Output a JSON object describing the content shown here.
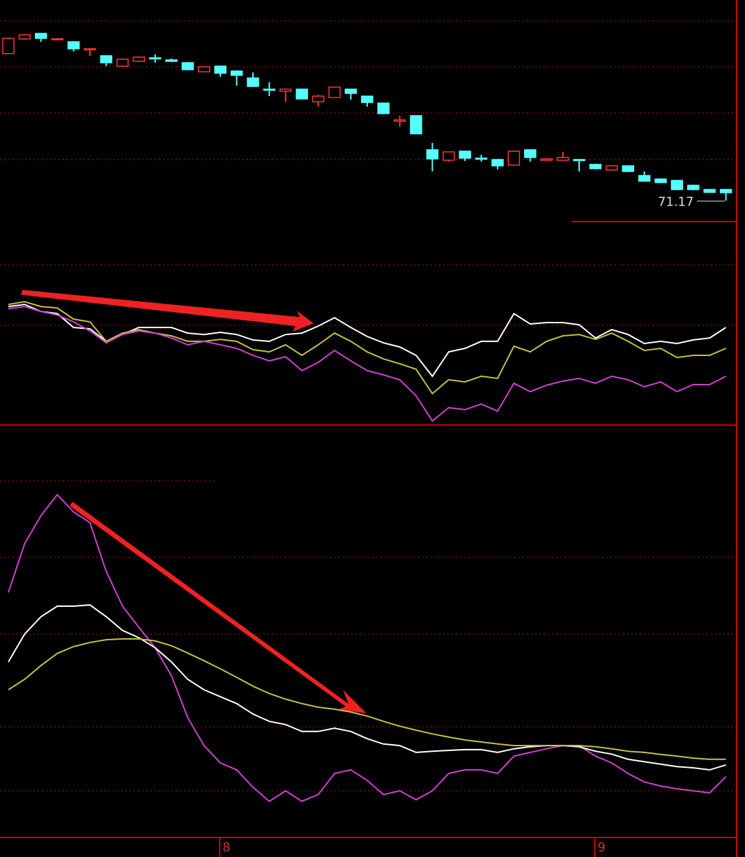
{
  "chart_data": [
    {
      "type": "candlestick",
      "up_color": "#ff3333",
      "down_color": "#54ffff",
      "ylim": [
        69,
        85
      ],
      "last_price": 71.17,
      "open": [
        81.15,
        82.2,
        82.6,
        82.2,
        82.0,
        81.45,
        81.0,
        80.25,
        80.6,
        80.85,
        80.7,
        80.5,
        79.85,
        80.25,
        79.9,
        79.4,
        78.6,
        78.45,
        78.6,
        77.7,
        78.0,
        78.6,
        78.1,
        77.6,
        76.3,
        76.7,
        74.25,
        73.5,
        74.15,
        73.65,
        73.55,
        73.15,
        74.25,
        73.5,
        73.5,
        73.55,
        73.2,
        72.8,
        73.1,
        72.4,
        72.15,
        72.05,
        71.7,
        71.4,
        71.4
      ],
      "high": [
        82.3,
        82.55,
        82.6,
        82.25,
        82.05,
        81.5,
        81.0,
        80.8,
        80.95,
        81.1,
        80.8,
        80.55,
        80.2,
        80.3,
        79.95,
        79.8,
        79.1,
        78.6,
        78.6,
        78.2,
        78.75,
        78.6,
        78.1,
        77.65,
        76.7,
        76.7,
        74.75,
        74.1,
        74.15,
        73.9,
        73.6,
        74.2,
        74.3,
        73.6,
        74.1,
        73.6,
        73.25,
        73.1,
        73.1,
        72.7,
        72.2,
        72.1,
        71.75,
        71.45,
        71.45
      ],
      "low": [
        81.1,
        82.15,
        82.0,
        82.15,
        81.3,
        81.0,
        80.25,
        80.2,
        80.55,
        80.5,
        80.55,
        79.95,
        79.85,
        79.5,
        78.85,
        78.8,
        78.1,
        77.7,
        77.9,
        77.35,
        78.0,
        77.85,
        77.35,
        76.8,
        75.9,
        75.4,
        72.7,
        73.4,
        73.45,
        73.4,
        72.85,
        73.1,
        73.4,
        73.45,
        73.5,
        72.7,
        72.85,
        72.8,
        72.7,
        72.0,
        71.85,
        71.35,
        71.35,
        71.15,
        70.6
      ],
      "close": [
        82.25,
        82.5,
        82.25,
        82.22,
        81.5,
        81.5,
        80.5,
        80.75,
        80.9,
        80.82,
        80.6,
        80.0,
        80.2,
        79.75,
        79.6,
        78.8,
        78.58,
        78.6,
        77.9,
        78.1,
        78.75,
        78.3,
        77.65,
        76.85,
        76.4,
        75.4,
        73.6,
        74.1,
        73.65,
        73.62,
        73.1,
        74.15,
        73.7,
        73.6,
        73.7,
        73.5,
        72.9,
        73.1,
        72.7,
        72.0,
        71.9,
        71.4,
        71.4,
        71.2,
        71.17
      ]
    },
    {
      "type": "line",
      "ylim": [
        0,
        100
      ],
      "series": [
        {
          "color": "#ffffff",
          "values": [
            60.7,
            61.8,
            58.2,
            57.1,
            50.0,
            49.3,
            42.9,
            46.4,
            50.0,
            50.0,
            50.0,
            47.1,
            46.4,
            47.5,
            46.4,
            43.6,
            42.9,
            46.4,
            47.1,
            50.7,
            55.0,
            50.0,
            45.4,
            42.1,
            40.0,
            35.7,
            25.0,
            37.5,
            39.3,
            42.9,
            42.9,
            57.1,
            51.8,
            52.5,
            52.5,
            51.4,
            44.6,
            48.9,
            46.4,
            41.8,
            42.9,
            41.8,
            43.6,
            44.6,
            50.0
          ]
        },
        {
          "color": "#c8c040",
          "values": [
            61.8,
            63.2,
            60.7,
            60.0,
            54.3,
            52.9,
            42.9,
            47.1,
            48.9,
            47.1,
            45.7,
            42.9,
            42.9,
            43.9,
            42.9,
            38.6,
            37.5,
            41.1,
            35.7,
            41.1,
            47.1,
            42.9,
            37.5,
            33.9,
            31.4,
            28.6,
            16.1,
            23.2,
            22.1,
            25.0,
            23.9,
            40.4,
            37.5,
            42.9,
            45.7,
            46.4,
            43.9,
            47.1,
            42.9,
            38.2,
            39.3,
            34.6,
            35.7,
            35.7,
            39.3
          ]
        },
        {
          "color": "#d040d0",
          "values": [
            59.6,
            60.7,
            58.2,
            56.4,
            52.9,
            48.2,
            42.1,
            46.4,
            48.2,
            47.1,
            44.6,
            41.1,
            42.9,
            41.1,
            39.3,
            35.7,
            32.9,
            35.0,
            27.9,
            32.1,
            38.2,
            32.9,
            27.9,
            25.7,
            23.2,
            15.0,
            2.1,
            8.9,
            7.9,
            10.7,
            7.1,
            21.4,
            17.1,
            20.4,
            22.5,
            23.9,
            21.4,
            25.0,
            23.2,
            19.6,
            22.1,
            17.1,
            20.7,
            20.7,
            25.0
          ]
        }
      ]
    },
    {
      "type": "line",
      "ylim": [
        0,
        100
      ],
      "categories": [
        null,
        null,
        null,
        null,
        null,
        null,
        null,
        null,
        null,
        null,
        null,
        null,
        null,
        "8",
        null,
        null,
        null,
        null,
        null,
        null,
        null,
        null,
        null,
        null,
        null,
        null,
        null,
        null,
        null,
        null,
        null,
        null,
        null,
        null,
        null,
        null,
        "9",
        null,
        null,
        null,
        null,
        null,
        null,
        null,
        null
      ],
      "series": [
        {
          "color": "#d040d0",
          "values": [
            60.3,
            72.4,
            79.3,
            84.5,
            80.2,
            77.6,
            65.5,
            56.9,
            51.7,
            46.6,
            39.7,
            29.3,
            22.4,
            18.1,
            16.4,
            12.1,
            8.6,
            11.2,
            8.6,
            10.3,
            15.5,
            16.4,
            13.8,
            10.3,
            11.2,
            9.0,
            11.2,
            15.5,
            16.4,
            16.4,
            15.5,
            19.8,
            20.7,
            21.6,
            22.4,
            22.4,
            19.8,
            18.1,
            15.5,
            13.4,
            12.4,
            11.7,
            11.2,
            10.7,
            14.7
          ]
        },
        {
          "color": "#ffffff",
          "values": [
            43.1,
            50.0,
            54.3,
            56.9,
            56.9,
            57.2,
            54.3,
            50.9,
            49.1,
            46.6,
            43.1,
            38.8,
            36.2,
            34.5,
            32.8,
            30.2,
            28.4,
            27.6,
            25.9,
            25.9,
            26.7,
            25.9,
            24.1,
            22.8,
            22.4,
            20.7,
            21.0,
            21.2,
            21.4,
            21.4,
            20.7,
            21.6,
            22.1,
            22.4,
            22.4,
            22.1,
            21.0,
            20.3,
            19.0,
            18.4,
            17.8,
            17.2,
            16.9,
            16.4,
            17.6
          ]
        },
        {
          "color": "#c8c040",
          "values": [
            36.2,
            38.8,
            42.2,
            45.2,
            46.9,
            47.9,
            48.6,
            48.8,
            48.8,
            48.3,
            47.1,
            45.3,
            43.4,
            41.4,
            39.3,
            37.1,
            35.3,
            33.9,
            32.8,
            31.9,
            31.4,
            30.7,
            29.7,
            28.4,
            27.2,
            26.2,
            25.3,
            24.5,
            23.8,
            23.3,
            22.8,
            22.4,
            22.4,
            22.4,
            22.4,
            22.4,
            22.1,
            21.6,
            21.0,
            20.7,
            20.2,
            19.8,
            19.3,
            19.0,
            19.0
          ]
        }
      ]
    }
  ]
}
